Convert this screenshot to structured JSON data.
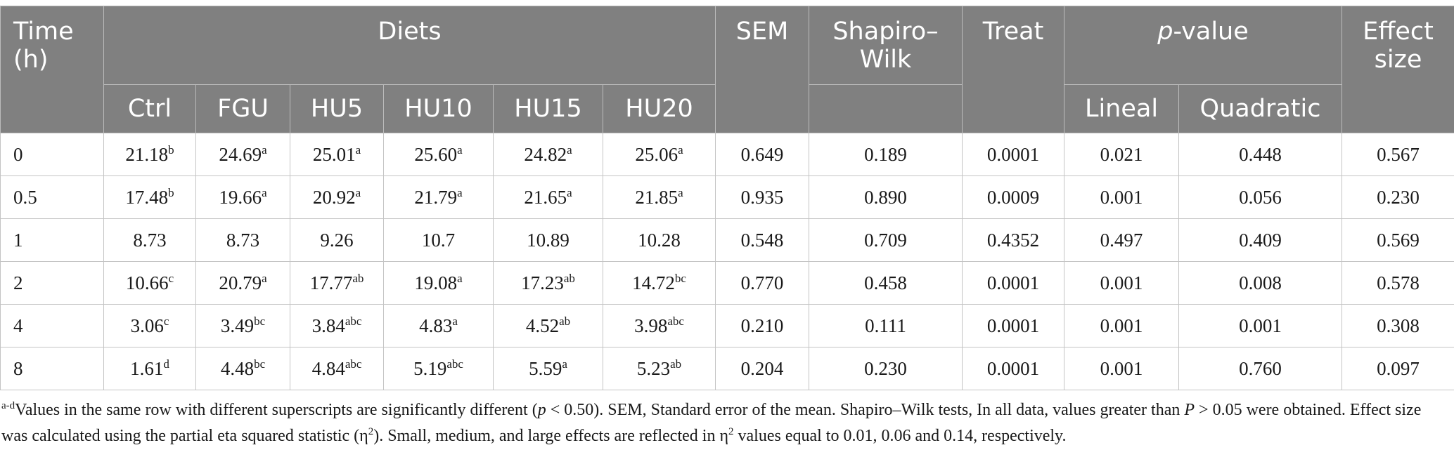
{
  "header": {
    "time": "Time (h)",
    "diets": "Diets",
    "sem": "SEM",
    "shapiro": "Shapiro–Wilk",
    "treat": "Treat",
    "pvalue_p": "p",
    "pvalue_rest": "-value",
    "effect": "Effect size",
    "diet_cols": [
      "Ctrl",
      "FGU",
      "HU5",
      "HU10",
      "HU15",
      "HU20"
    ],
    "pvalue_cols": [
      "Lineal",
      "Quadratic"
    ]
  },
  "rows": [
    {
      "time": "0",
      "diets": [
        [
          "21.18",
          "b"
        ],
        [
          "24.69",
          "a"
        ],
        [
          "25.01",
          "a"
        ],
        [
          "25.60",
          "a"
        ],
        [
          "24.82",
          "a"
        ],
        [
          "25.06",
          "a"
        ]
      ],
      "sem": "0.649",
      "shapiro": "0.189",
      "treat": "0.0001",
      "lineal": "0.021",
      "quadratic": "0.448",
      "effect": "0.567"
    },
    {
      "time": "0.5",
      "diets": [
        [
          "17.48",
          "b"
        ],
        [
          "19.66",
          "a"
        ],
        [
          "20.92",
          "a"
        ],
        [
          "21.79",
          "a"
        ],
        [
          "21.65",
          "a"
        ],
        [
          "21.85",
          "a"
        ]
      ],
      "sem": "0.935",
      "shapiro": "0.890",
      "treat": "0.0009",
      "lineal": "0.001",
      "quadratic": "0.056",
      "effect": "0.230"
    },
    {
      "time": "1",
      "diets": [
        [
          "8.73",
          ""
        ],
        [
          "8.73",
          ""
        ],
        [
          "9.26",
          ""
        ],
        [
          "10.7",
          ""
        ],
        [
          "10.89",
          ""
        ],
        [
          "10.28",
          ""
        ]
      ],
      "sem": "0.548",
      "shapiro": "0.709",
      "treat": "0.4352",
      "lineal": "0.497",
      "quadratic": "0.409",
      "effect": "0.569"
    },
    {
      "time": "2",
      "diets": [
        [
          "10.66",
          "c"
        ],
        [
          "20.79",
          "a"
        ],
        [
          "17.77",
          "ab"
        ],
        [
          "19.08",
          "a"
        ],
        [
          "17.23",
          "ab"
        ],
        [
          "14.72",
          "bc"
        ]
      ],
      "sem": "0.770",
      "shapiro": "0.458",
      "treat": "0.0001",
      "lineal": "0.001",
      "quadratic": "0.008",
      "effect": "0.578"
    },
    {
      "time": "4",
      "diets": [
        [
          "3.06",
          "c"
        ],
        [
          "3.49",
          "bc"
        ],
        [
          "3.84",
          "abc"
        ],
        [
          "4.83",
          "a"
        ],
        [
          "4.52",
          "ab"
        ],
        [
          "3.98",
          "abc"
        ]
      ],
      "sem": "0.210",
      "shapiro": "0.111",
      "treat": "0.0001",
      "lineal": "0.001",
      "quadratic": "0.001",
      "effect": "0.308"
    },
    {
      "time": "8",
      "diets": [
        [
          "1.61",
          "d"
        ],
        [
          "4.48",
          "bc"
        ],
        [
          "4.84",
          "abc"
        ],
        [
          "5.19",
          "abc"
        ],
        [
          "5.59",
          "a"
        ],
        [
          "5.23",
          "ab"
        ]
      ],
      "sem": "0.204",
      "shapiro": "0.230",
      "treat": "0.0001",
      "lineal": "0.001",
      "quadratic": "0.760",
      "effect": "0.097"
    }
  ],
  "footnote": {
    "sup": "a-d",
    "t1": "Values in the same row with different superscripts are significantly different (",
    "p": "p",
    "t2": " < 0.50). SEM, Standard error of the mean. Shapiro–Wilk tests, In all data, values greater than ",
    "P": "P",
    "t3": " > 0.05 were obtained. Effect size was calculated using the partial eta squared statistic (η",
    "sq": "2",
    "t4": "). Small, medium, and large effects are reflected in η",
    "sq2": "2",
    "t5": " values equal to 0.01, 0.06 and 0.14, respectively."
  }
}
